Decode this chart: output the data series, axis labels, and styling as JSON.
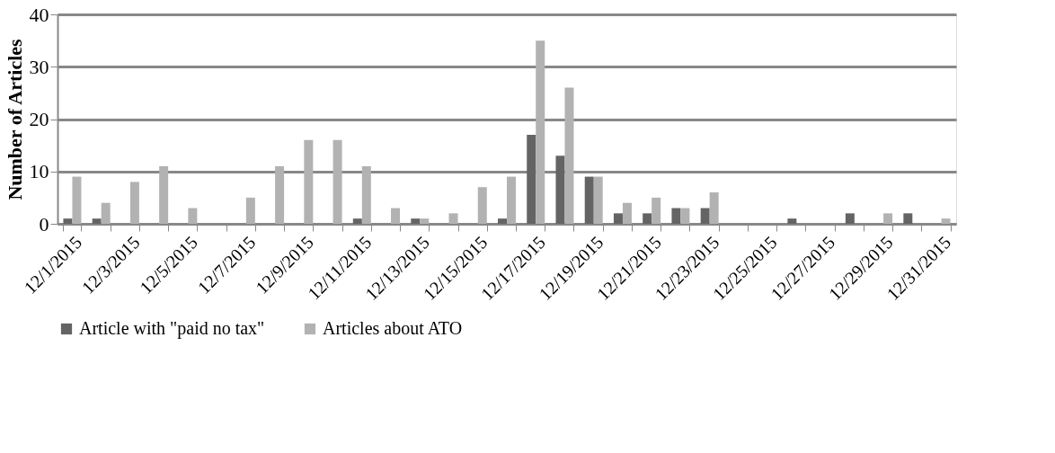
{
  "chart_data": {
    "type": "bar",
    "ylabel": "Number of Articles",
    "categories": [
      "12/1/2015",
      null,
      "12/3/2015",
      null,
      "12/5/2015",
      null,
      "12/7/2015",
      null,
      "12/9/2015",
      null,
      "12/11/2015",
      null,
      "12/13/2015",
      null,
      "12/15/2015",
      null,
      "12/17/2015",
      null,
      "12/19/2015",
      null,
      "12/21/2015",
      null,
      "12/23/2015",
      null,
      "12/25/2015",
      null,
      "12/27/2015",
      null,
      "12/29/2015",
      null,
      "12/31/2015"
    ],
    "series": [
      {
        "name": "Article with \"paid no tax\"",
        "color": "#646464",
        "values": [
          1,
          1,
          0,
          0,
          0,
          0,
          0,
          0,
          0,
          0,
          1,
          0,
          1,
          0,
          0,
          1,
          17,
          13,
          9,
          2,
          2,
          3,
          3,
          0,
          0,
          1,
          0,
          2,
          0,
          2,
          0
        ]
      },
      {
        "name": "Articles about ATO",
        "color": "#b2b2b2",
        "values": [
          9,
          4,
          8,
          11,
          3,
          0,
          5,
          11,
          16,
          16,
          11,
          3,
          1,
          2,
          7,
          9,
          35,
          26,
          9,
          4,
          5,
          3,
          6,
          0,
          0,
          0,
          0,
          0,
          2,
          0,
          1
        ]
      }
    ],
    "ylim": [
      0,
      40
    ],
    "yticks": [
      0,
      10,
      20,
      30,
      40
    ],
    "grid": "y",
    "legend": "bottom"
  }
}
